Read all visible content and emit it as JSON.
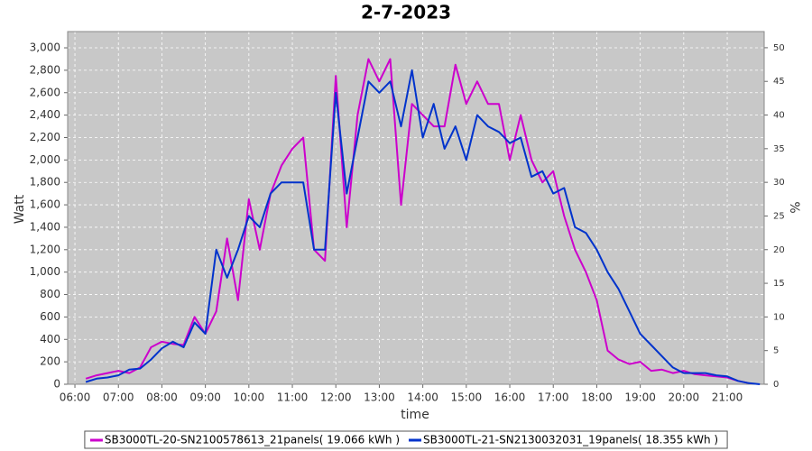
{
  "chart_data": {
    "type": "line",
    "title": "2-7-2023",
    "x_label": "time",
    "y_label": "Watt",
    "y2_label": "%",
    "x": [
      "06:00",
      "06:15",
      "06:30",
      "06:45",
      "07:00",
      "07:15",
      "07:30",
      "07:45",
      "08:00",
      "08:15",
      "08:30",
      "08:45",
      "09:00",
      "09:15",
      "09:30",
      "09:45",
      "10:00",
      "10:15",
      "10:30",
      "10:45",
      "11:00",
      "11:15",
      "11:30",
      "11:45",
      "12:00",
      "12:15",
      "12:30",
      "12:45",
      "13:00",
      "13:15",
      "13:30",
      "13:45",
      "14:00",
      "14:15",
      "14:30",
      "14:45",
      "15:00",
      "15:15",
      "15:30",
      "15:45",
      "16:00",
      "16:15",
      "16:30",
      "16:45",
      "17:00",
      "17:15",
      "17:30",
      "17:45",
      "18:00",
      "18:15",
      "18:30",
      "18:45",
      "19:00",
      "19:15",
      "19:30",
      "19:45",
      "20:00",
      "20:15",
      "20:30",
      "20:45",
      "21:00",
      "21:15",
      "21:30",
      "21:45"
    ],
    "series": [
      {
        "name": "SB3000TL-20-SN2100578613_21panels( 19.066 kWh )",
        "color": "#cc00cc",
        "values": [
          null,
          50,
          80,
          100,
          120,
          100,
          150,
          330,
          380,
          360,
          350,
          600,
          450,
          650,
          1300,
          750,
          1650,
          1200,
          1700,
          1950,
          2100,
          2200,
          1200,
          1100,
          2750,
          1400,
          2400,
          2900,
          2700,
          2900,
          1600,
          2500,
          2400,
          2300,
          2300,
          2850,
          2500,
          2700,
          2500,
          2500,
          2000,
          2400,
          2000,
          1800,
          1900,
          1500,
          1200,
          1000,
          750,
          300,
          220,
          180,
          200,
          120,
          130,
          100,
          120,
          90,
          80,
          70,
          60,
          30,
          10,
          null
        ]
      },
      {
        "name": "SB3000TL-21-SN2130032031_19panels( 18.355 kWh )",
        "color": "#0033cc",
        "values": [
          null,
          20,
          50,
          60,
          80,
          130,
          140,
          220,
          320,
          380,
          330,
          550,
          450,
          1200,
          950,
          1200,
          1500,
          1400,
          1700,
          1800,
          1800,
          1800,
          1200,
          1200,
          2600,
          1700,
          2200,
          2700,
          2600,
          2700,
          2300,
          2800,
          2200,
          2500,
          2100,
          2300,
          2000,
          2400,
          2300,
          2250,
          2150,
          2200,
          1850,
          1900,
          1700,
          1750,
          1400,
          1350,
          1200,
          1000,
          850,
          650,
          450,
          350,
          250,
          150,
          100,
          100,
          100,
          80,
          70,
          30,
          10,
          0
        ]
      }
    ],
    "xlim": [
      "05:50",
      "21:51"
    ],
    "xticks": [
      "06:00",
      "07:00",
      "08:00",
      "09:00",
      "10:00",
      "11:00",
      "12:00",
      "13:00",
      "14:00",
      "15:00",
      "16:00",
      "17:00",
      "18:00",
      "19:00",
      "20:00",
      "21:00"
    ],
    "ylim": [
      0,
      3145
    ],
    "yticks": [
      0,
      200,
      400,
      600,
      800,
      {
        "value": 1000,
        "label": "1,000"
      },
      {
        "value": 1200,
        "label": "1,200"
      },
      {
        "value": 1400,
        "label": "1,400"
      },
      {
        "value": 1600,
        "label": "1,600"
      },
      {
        "value": 1800,
        "label": "1,800"
      },
      {
        "value": 2000,
        "label": "2,000"
      },
      {
        "value": 2200,
        "label": "2,200"
      },
      {
        "value": 2400,
        "label": "2,400"
      },
      {
        "value": 2600,
        "label": "2,600"
      },
      {
        "value": 2800,
        "label": "2,800"
      },
      {
        "value": 3000,
        "label": "3,000"
      }
    ],
    "y2lim": [
      0,
      52.4
    ],
    "y2ticks": [
      0,
      5,
      10,
      15,
      20,
      25,
      30,
      35,
      40,
      45,
      50
    ],
    "grid": true,
    "plot_background": "#c8c8c8",
    "legend": "bottom"
  }
}
